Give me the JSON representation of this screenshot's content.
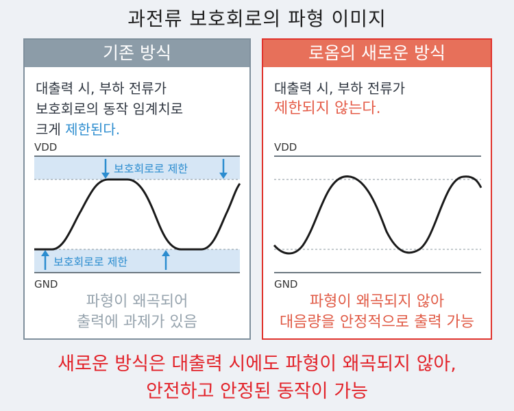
{
  "title": "과전류 보호회로의 파형 이미지",
  "left": {
    "header": "기존 방식",
    "desc_line1": "대출력 시, 부하 전류가",
    "desc_line2": "보호회로의 동작 임계치로",
    "desc_line3_a": "크게 ",
    "desc_line3_b": "제한된다.",
    "vdd_label": "VDD",
    "gnd_label": "GND",
    "limit_top_label": "보호회로로 제한",
    "limit_bottom_label": "보호회로로 제한",
    "foot_line1": "파형이 왜곡되어",
    "foot_line2": "출력에 과제가 있음"
  },
  "right": {
    "header": "로옴의 새로운 방식",
    "desc_line1": "대출력 시, 부하 전류가",
    "desc_line2": "제한되지 않는다.",
    "vdd_label": "VDD",
    "gnd_label": "GND",
    "foot_line1": "파형이 왜곡되지 않아",
    "foot_line2": "대음량을 안정적으로 출력 가능"
  },
  "bottom_line1": "새로운 방식은 대출력 시에도 파형이 왜곡되지 않아,",
  "bottom_line2": "안전하고 안정된 동작이 가능",
  "colors": {
    "left_accent": "#8c9ca8",
    "right_accent": "#e7705a",
    "right_border": "#e0332c",
    "limit_band": "#d6e6f5",
    "limit_arrow": "#2b8ccf",
    "emphasis_red": "#e2232a"
  }
}
